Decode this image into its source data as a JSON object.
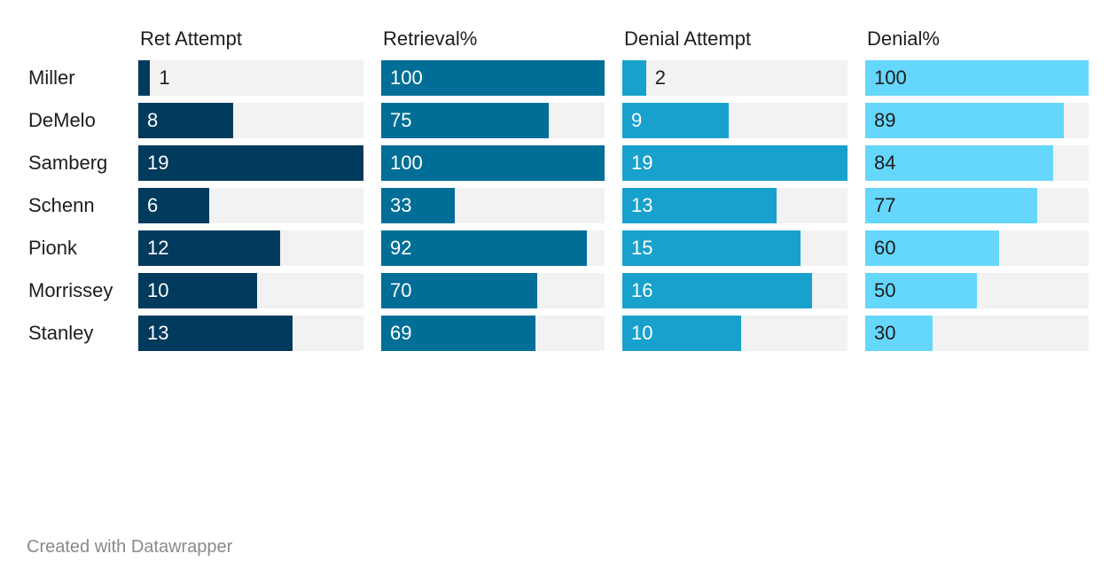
{
  "chart_data": {
    "type": "table",
    "title": "",
    "categories": [
      "Miller",
      "DeMelo",
      "Samberg",
      "Schenn",
      "Pionk",
      "Morrissey",
      "Stanley"
    ],
    "series": [
      {
        "name": "Ret Attempt",
        "values": [
          1,
          8,
          19,
          6,
          12,
          10,
          13
        ],
        "max": 19,
        "color": "#003a5d",
        "text_color": "#ffffff"
      },
      {
        "name": "Retrieval%",
        "values": [
          100,
          75,
          100,
          33,
          92,
          70,
          69
        ],
        "max": 100,
        "color": "#006e97",
        "text_color": "#ffffff"
      },
      {
        "name": "Denial Attempt",
        "values": [
          2,
          9,
          19,
          13,
          15,
          16,
          10
        ],
        "max": 19,
        "color": "#18a1cd",
        "text_color": "#ffffff"
      },
      {
        "name": "Denial%",
        "values": [
          100,
          89,
          84,
          77,
          60,
          50,
          30
        ],
        "max": 100,
        "color": "#65d7fc",
        "text_color": "#1d1d1d"
      }
    ],
    "track_color": "#f2f2f2",
    "outside_label_color": "#1d1d1d"
  },
  "footer": {
    "credit": "Created with Datawrapper"
  }
}
